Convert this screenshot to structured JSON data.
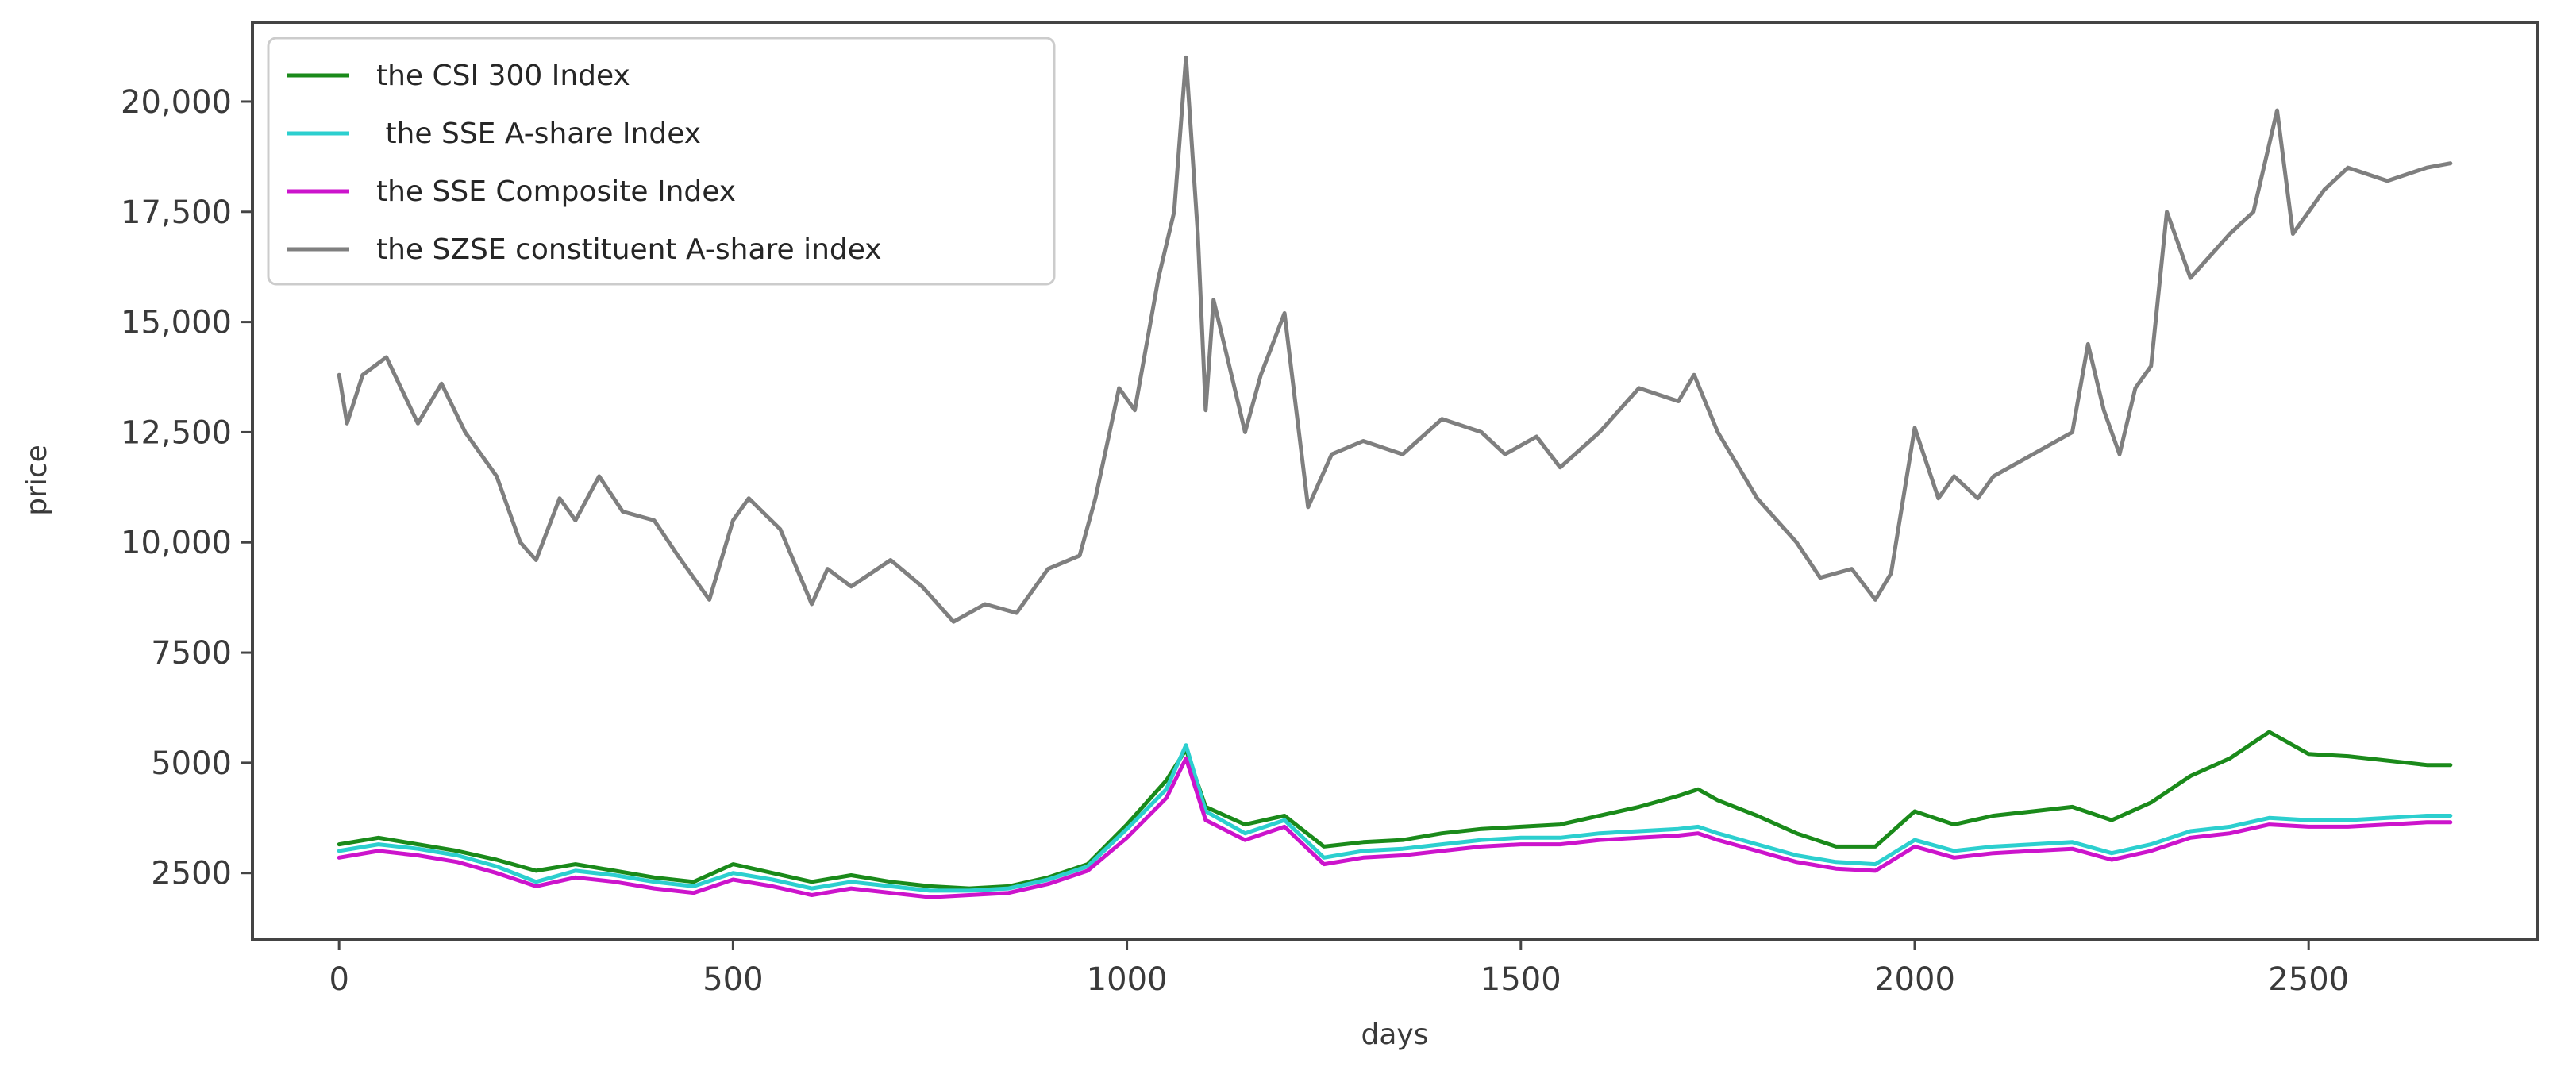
{
  "chart_data": {
    "type": "line",
    "title": "",
    "xlabel": "days",
    "ylabel": "price",
    "xlim": [
      -110,
      2790
    ],
    "ylim": [
      1000,
      21800
    ],
    "x_ticks": [
      0,
      500,
      1000,
      1500,
      2000,
      2500
    ],
    "x_tick_labels": [
      "0",
      "500",
      "1000",
      "1500",
      "2000",
      "2500"
    ],
    "y_ticks": [
      2500,
      5000,
      7500,
      10000,
      12500,
      15000,
      17500,
      20000
    ],
    "y_tick_labels": [
      "2500",
      "5000",
      "7500",
      "10,000",
      "12,500",
      "15,000",
      "17,500",
      "20,000"
    ],
    "grid": false,
    "legend_position": "top-left",
    "legend": [
      "the CSI 300 Index",
      " the SSE A-share Index",
      "the SSE Composite Index",
      "the SZSE constituent A-share index"
    ],
    "series": [
      {
        "name": "the CSI 300 Index",
        "color": "#1a8a1a",
        "x": [
          0,
          50,
          100,
          150,
          200,
          250,
          300,
          350,
          400,
          450,
          500,
          550,
          600,
          650,
          700,
          750,
          800,
          850,
          900,
          950,
          1000,
          1050,
          1075,
          1100,
          1150,
          1200,
          1250,
          1300,
          1350,
          1400,
          1450,
          1500,
          1550,
          1600,
          1650,
          1700,
          1725,
          1750,
          1800,
          1850,
          1900,
          1950,
          2000,
          2050,
          2100,
          2150,
          2200,
          2250,
          2300,
          2350,
          2400,
          2450,
          2500,
          2550,
          2600,
          2650,
          2680
        ],
        "y": [
          3150,
          3300,
          3150,
          3000,
          2800,
          2550,
          2700,
          2550,
          2400,
          2300,
          2700,
          2500,
          2300,
          2450,
          2300,
          2200,
          2150,
          2200,
          2400,
          2700,
          3600,
          4600,
          5300,
          4000,
          3600,
          3800,
          3100,
          3200,
          3250,
          3400,
          3500,
          3550,
          3600,
          3800,
          4000,
          4250,
          4400,
          4150,
          3800,
          3400,
          3100,
          3100,
          3900,
          3600,
          3800,
          3900,
          4000,
          3700,
          4100,
          4700,
          5100,
          5700,
          5200,
          5150,
          5050,
          4950,
          4950
        ]
      },
      {
        "name": " the SSE A-share Index",
        "color": "#2ccfcf",
        "x": [
          0,
          50,
          100,
          150,
          200,
          250,
          300,
          350,
          400,
          450,
          500,
          550,
          600,
          650,
          700,
          750,
          800,
          850,
          900,
          950,
          1000,
          1050,
          1075,
          1100,
          1150,
          1200,
          1250,
          1300,
          1350,
          1400,
          1450,
          1500,
          1550,
          1600,
          1650,
          1700,
          1725,
          1750,
          1800,
          1850,
          1900,
          1950,
          2000,
          2050,
          2100,
          2150,
          2200,
          2250,
          2300,
          2350,
          2400,
          2450,
          2500,
          2550,
          2600,
          2650,
          2680
        ],
        "y": [
          3000,
          3150,
          3050,
          2900,
          2650,
          2300,
          2550,
          2450,
          2300,
          2200,
          2500,
          2350,
          2150,
          2300,
          2200,
          2100,
          2100,
          2150,
          2350,
          2650,
          3500,
          4400,
          5400,
          3900,
          3400,
          3700,
          2850,
          3000,
          3050,
          3150,
          3250,
          3300,
          3300,
          3400,
          3450,
          3500,
          3550,
          3400,
          3150,
          2900,
          2750,
          2700,
          3250,
          3000,
          3100,
          3150,
          3200,
          2950,
          3150,
          3450,
          3550,
          3750,
          3700,
          3700,
          3750,
          3800,
          3800
        ]
      },
      {
        "name": "the SSE Composite Index",
        "color": "#cc14cc",
        "x": [
          0,
          50,
          100,
          150,
          200,
          250,
          300,
          350,
          400,
          450,
          500,
          550,
          600,
          650,
          700,
          750,
          800,
          850,
          900,
          950,
          1000,
          1050,
          1075,
          1100,
          1150,
          1200,
          1250,
          1300,
          1350,
          1400,
          1450,
          1500,
          1550,
          1600,
          1650,
          1700,
          1725,
          1750,
          1800,
          1850,
          1900,
          1950,
          2000,
          2050,
          2100,
          2150,
          2200,
          2250,
          2300,
          2350,
          2400,
          2450,
          2500,
          2550,
          2600,
          2650,
          2680
        ],
        "y": [
          2850,
          3000,
          2900,
          2750,
          2500,
          2200,
          2400,
          2300,
          2150,
          2050,
          2350,
          2200,
          2000,
          2150,
          2050,
          1950,
          2000,
          2050,
          2250,
          2550,
          3300,
          4200,
          5100,
          3700,
          3250,
          3550,
          2700,
          2850,
          2900,
          3000,
          3100,
          3150,
          3150,
          3250,
          3300,
          3350,
          3400,
          3250,
          3000,
          2750,
          2600,
          2550,
          3100,
          2850,
          2950,
          3000,
          3050,
          2800,
          3000,
          3300,
          3400,
          3600,
          3550,
          3550,
          3600,
          3650,
          3650
        ]
      },
      {
        "name": "the SZSE constituent A-share index",
        "color": "#7f7f7f",
        "x": [
          0,
          10,
          30,
          60,
          100,
          130,
          160,
          200,
          230,
          250,
          280,
          300,
          330,
          360,
          400,
          430,
          470,
          500,
          520,
          560,
          600,
          620,
          650,
          700,
          740,
          780,
          820,
          860,
          900,
          940,
          960,
          990,
          1010,
          1040,
          1060,
          1075,
          1090,
          1100,
          1110,
          1130,
          1150,
          1170,
          1200,
          1215,
          1230,
          1260,
          1300,
          1350,
          1400,
          1450,
          1480,
          1520,
          1550,
          1600,
          1650,
          1700,
          1720,
          1750,
          1800,
          1850,
          1880,
          1920,
          1950,
          1970,
          2000,
          2030,
          2050,
          2080,
          2100,
          2150,
          2200,
          2220,
          2240,
          2260,
          2280,
          2300,
          2320,
          2350,
          2400,
          2430,
          2460,
          2480,
          2520,
          2550,
          2600,
          2650,
          2680
        ],
        "y": [
          13800,
          12700,
          13800,
          14200,
          12700,
          13600,
          12500,
          11500,
          10000,
          9600,
          11000,
          10500,
          11500,
          10700,
          10500,
          9700,
          8700,
          10500,
          11000,
          10300,
          8600,
          9400,
          9000,
          9600,
          9000,
          8200,
          8600,
          8400,
          9400,
          9700,
          11000,
          13500,
          13000,
          16000,
          17500,
          21000,
          17000,
          13000,
          15500,
          14000,
          12500,
          13800,
          15200,
          13000,
          10800,
          12000,
          12300,
          12000,
          12800,
          12500,
          12000,
          12400,
          11700,
          12500,
          13500,
          13200,
          13800,
          12500,
          11000,
          10000,
          9200,
          9400,
          8700,
          9300,
          12600,
          11000,
          11500,
          11000,
          11500,
          12000,
          12500,
          14500,
          13000,
          12000,
          13500,
          14000,
          17500,
          16000,
          17000,
          17500,
          19800,
          17000,
          18000,
          18500,
          18200,
          18500,
          18600
        ]
      }
    ]
  }
}
